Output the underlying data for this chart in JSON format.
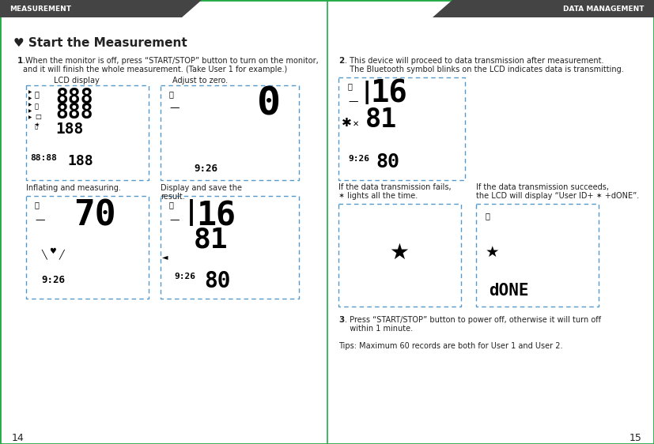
{
  "page_width": 8.27,
  "page_height": 5.62,
  "bg_color": "#ffffff",
  "border_color": "#22aa44",
  "header_bg": "#444444",
  "header_text_color": "#ffffff",
  "header_left": "MEASUREMENT",
  "header_right": "DATA MANAGEMENT",
  "heart_symbol": "♥",
  "section_title": "Start the Measurement",
  "step1_label": "1",
  "step1_line1": ".When the monitor is off, press “START/STOP” button to turn on the monitor,",
  "step1_line2": "and it will finish the whole measurement. (Take User 1 for example.)",
  "label_lcd": "LCD display",
  "label_zero": "Adjust to zero.",
  "label_inflating": "Inflating and measuring.",
  "label_display": "Display and save the",
  "label_display2": "result.",
  "step2_label": "2",
  "step2_line1": ". This device will proceed to data transmission after measurement.",
  "step2_line2": "  The Bluetooth symbol blinks on the LCD indicates data is transmitting.",
  "fail_line1": "If the data transmission fails,",
  "fail_line2": "✶ lights all the time.",
  "succ_line1": "If the data transmission succeeds,",
  "succ_line2": "the LCD will display “User ID+ ✶ +dONE”.",
  "step3_label": "3",
  "step3_line1": ". Press “START/STOP” button to power off, otherwise it will turn off",
  "step3_line2": "  within 1 minute.",
  "tips": "Tips: Maximum 60 records are both for User 1 and User 2.",
  "page_left": "14",
  "page_right": "15",
  "dash_color": "#5599cc",
  "text_color": "#222222",
  "gray_text": "#555555"
}
